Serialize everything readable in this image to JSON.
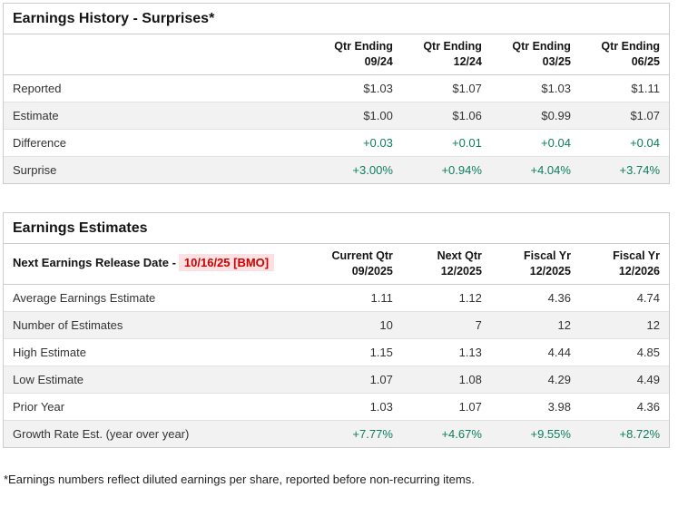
{
  "colors": {
    "positive_green": "#0e7d5e",
    "alert_red": "#cc0000",
    "alert_red_bg": "#fbe1e1",
    "stripe_gray": "#f2f2f2",
    "border_gray": "#cccccc"
  },
  "surprises_table": {
    "title": "Earnings History - Surprises*",
    "col_headers": [
      {
        "line1": "Qtr Ending",
        "line2": "09/24"
      },
      {
        "line1": "Qtr Ending",
        "line2": "12/24"
      },
      {
        "line1": "Qtr Ending",
        "line2": "03/25"
      },
      {
        "line1": "Qtr Ending",
        "line2": "06/25"
      }
    ],
    "rows": [
      {
        "label": "Reported",
        "values": [
          "$1.03",
          "$1.07",
          "$1.03",
          "$1.11"
        ]
      },
      {
        "label": "Estimate",
        "values": [
          "$1.00",
          "$1.06",
          "$0.99",
          "$1.07"
        ]
      },
      {
        "label": "Difference",
        "values": [
          "+0.03",
          "+0.01",
          "+0.04",
          "+0.04"
        ]
      },
      {
        "label": "Surprise",
        "values": [
          "+3.00%",
          "+0.94%",
          "+4.04%",
          "+3.74%"
        ]
      }
    ]
  },
  "estimates_table": {
    "title": "Earnings Estimates",
    "release_label": "Next Earnings Release Date -",
    "release_date": "10/16/25 [BMO]",
    "col_headers": [
      {
        "line1": "Current Qtr",
        "line2": "09/2025"
      },
      {
        "line1": "Next Qtr",
        "line2": "12/2025"
      },
      {
        "line1": "Fiscal Yr",
        "line2": "12/2025"
      },
      {
        "line1": "Fiscal Yr",
        "line2": "12/2026"
      }
    ],
    "rows": [
      {
        "label": "Average Earnings Estimate",
        "values": [
          "1.11",
          "1.12",
          "4.36",
          "4.74"
        ]
      },
      {
        "label": "Number of Estimates",
        "values": [
          "10",
          "7",
          "12",
          "12"
        ]
      },
      {
        "label": "High Estimate",
        "values": [
          "1.15",
          "1.13",
          "4.44",
          "4.85"
        ]
      },
      {
        "label": "Low Estimate",
        "values": [
          "1.07",
          "1.08",
          "4.29",
          "4.49"
        ]
      },
      {
        "label": "Prior Year",
        "values": [
          "1.03",
          "1.07",
          "3.98",
          "4.36"
        ]
      },
      {
        "label": "Growth Rate Est. (year over year)",
        "values": [
          "+7.77%",
          "+4.67%",
          "+9.55%",
          "+8.72%"
        ]
      }
    ]
  },
  "footnote": "*Earnings numbers reflect diluted earnings per share, reported before non-recurring items."
}
